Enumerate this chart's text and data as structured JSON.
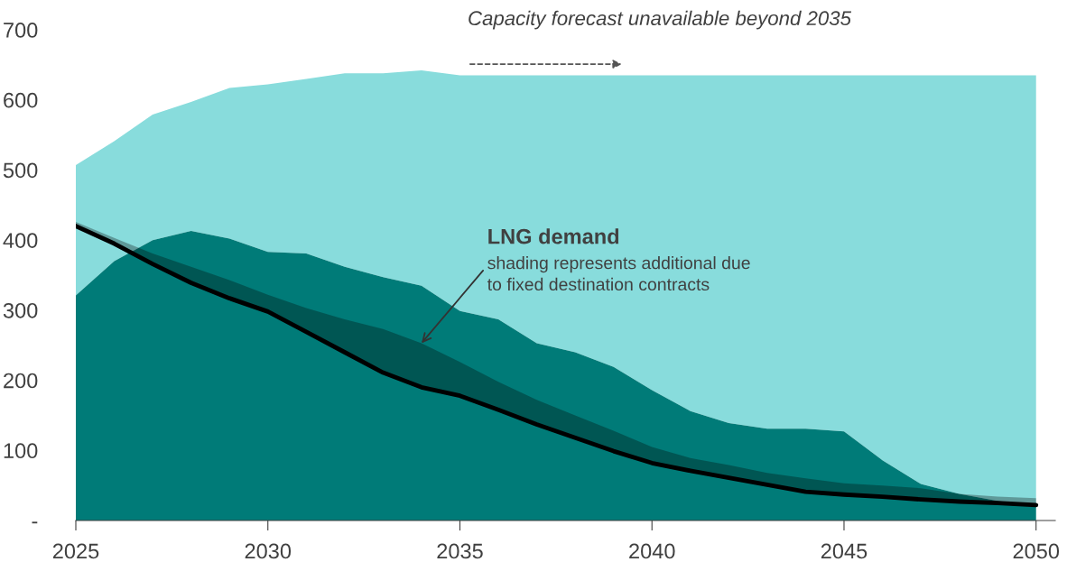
{
  "chart_data": {
    "type": "area",
    "x": [
      2025,
      2026,
      2027,
      2028,
      2029,
      2030,
      2031,
      2032,
      2033,
      2034,
      2035,
      2036,
      2037,
      2038,
      2039,
      2040,
      2041,
      2042,
      2043,
      2044,
      2045,
      2046,
      2047,
      2048,
      2049,
      2050
    ],
    "series": [
      {
        "color": "#88dcdc",
        "values": [
          507,
          541,
          579,
          597,
          617,
          622,
          630,
          638,
          638,
          642,
          635,
          635,
          635,
          635,
          635,
          635,
          635,
          635,
          635,
          635,
          635,
          635,
          635,
          635,
          635,
          635
        ]
      },
      {
        "color": "#007b78",
        "values": [
          321,
          370,
          400,
          413,
          402,
          383,
          381,
          362,
          347,
          335,
          299,
          287,
          253,
          240,
          219,
          186,
          156,
          139,
          131,
          131,
          127,
          86,
          52,
          38,
          28,
          20
        ]
      },
      {
        "type": "line",
        "color": "#000000",
        "line_style": "solid",
        "values": [
          420,
          395,
          366,
          339,
          317,
          298,
          269,
          240,
          211,
          190,
          178,
          158,
          137,
          118,
          99,
          82,
          71,
          61,
          51,
          41,
          37,
          34,
          30,
          27,
          25,
          22
        ],
        "lower": [
          420,
          395,
          366,
          339,
          317,
          298,
          269,
          240,
          211,
          190,
          178,
          158,
          137,
          118,
          99,
          82,
          71,
          61,
          51,
          41,
          37,
          34,
          30,
          27,
          25,
          22
        ],
        "upper": [
          426,
          403,
          381,
          362,
          343,
          322,
          303,
          287,
          273,
          253,
          226,
          198,
          172,
          150,
          128,
          105,
          89,
          79,
          68,
          60,
          53,
          50,
          46,
          38,
          34,
          32
        ]
      }
    ],
    "xlim": [
      2025,
      2050.5
    ],
    "xticks": [
      2025,
      2030,
      2035,
      2040,
      2045,
      2050
    ],
    "ylim": [
      0,
      700
    ],
    "yticks": [
      {
        "value": 0,
        "label": "-"
      },
      100,
      200,
      300,
      400,
      500,
      600,
      700
    ],
    "grid": false,
    "legend": false,
    "annotations": [
      "Capacity forecast unavailable beyond 2035",
      "LNG demand",
      {
        "text": "shading represents additional due\nto fixed destination contracts",
        "x": 2034,
        "y": 253
      }
    ]
  }
}
